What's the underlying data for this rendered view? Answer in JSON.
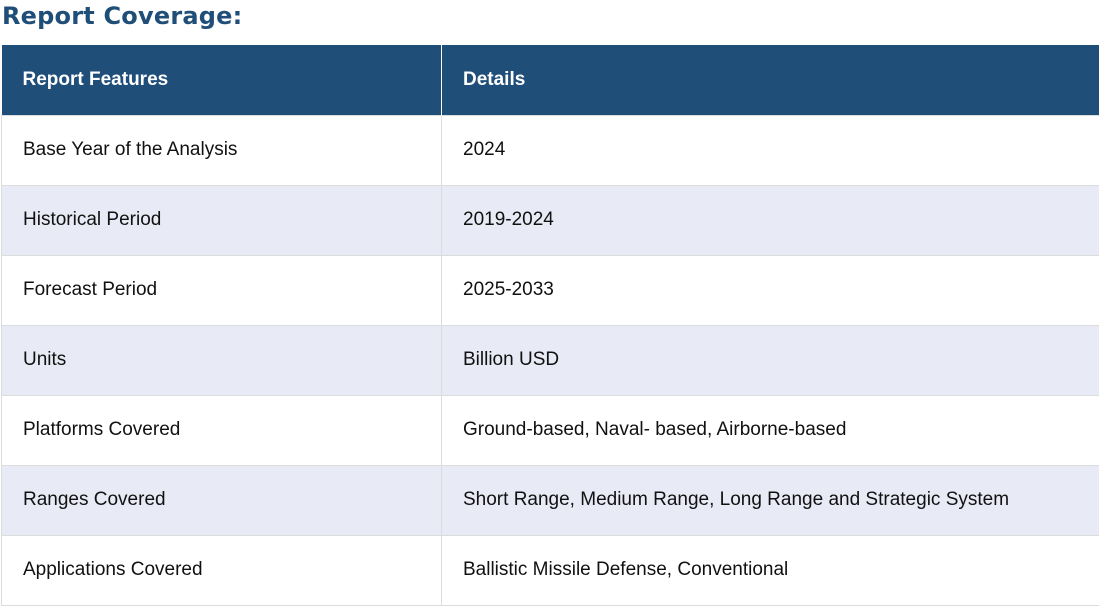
{
  "heading": "Report Coverage:",
  "table": {
    "headers": [
      "Report Features",
      "Details"
    ],
    "rows": [
      {
        "feature": "Base Year of the Analysis",
        "detail": "2024"
      },
      {
        "feature": "Historical Period",
        "detail": "2019-2024"
      },
      {
        "feature": "Forecast Period",
        "detail": "2025-2033"
      },
      {
        "feature": "Units",
        "detail": "Billion USD"
      },
      {
        "feature": "Platforms Covered",
        "detail": "Ground-based, Naval- based, Airborne-based"
      },
      {
        "feature": "Ranges Covered",
        "detail": "Short Range, Medium Range, Long Range and Strategic System"
      },
      {
        "feature": "Applications Covered",
        "detail": "Ballistic Missile Defense, Conventional"
      }
    ]
  },
  "colors": {
    "header_bg": "#1f4e79",
    "heading_text": "#1f4e79",
    "alt_row_bg": "#e8eaf5"
  }
}
